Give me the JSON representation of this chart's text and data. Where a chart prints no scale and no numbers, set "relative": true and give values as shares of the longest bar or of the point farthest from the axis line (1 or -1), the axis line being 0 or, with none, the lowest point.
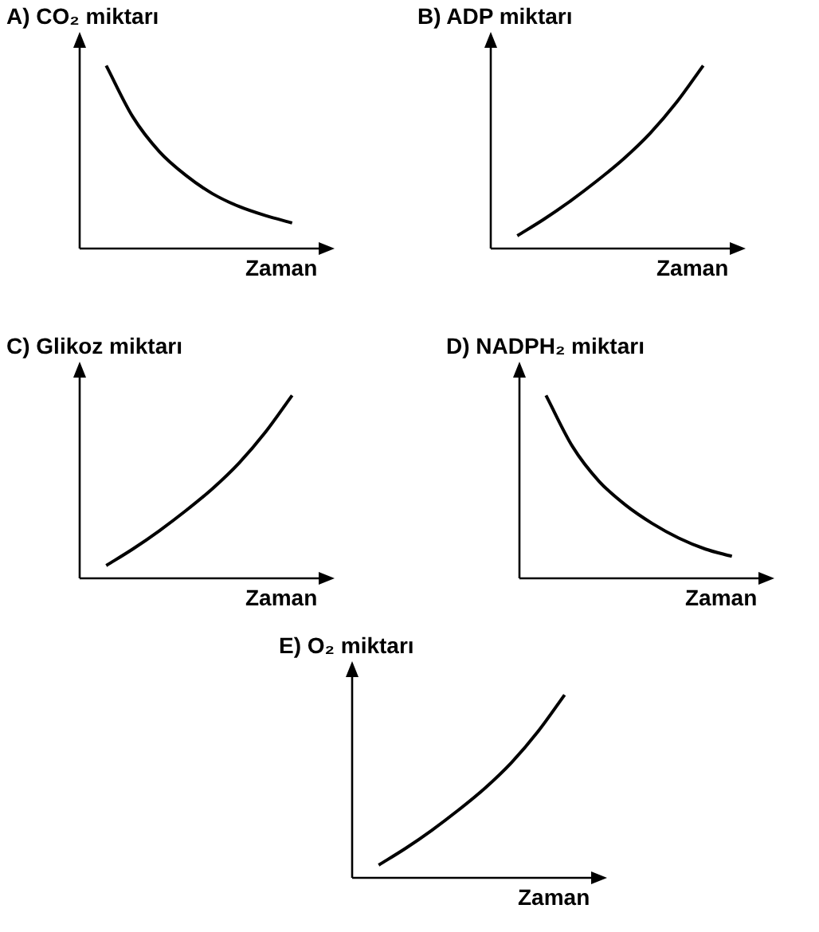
{
  "chart_data": [
    {
      "type": "line",
      "title": "A) CO₂ miktarı",
      "xlabel": "Zaman",
      "relative": true,
      "marker": "none",
      "categories": [
        null,
        null,
        null,
        null,
        null,
        null,
        null,
        null,
        null,
        null
      ],
      "series": [
        {
          "color": "#000000",
          "values": [
            null,
            1,
            0.72,
            0.53,
            0.4,
            0.3,
            0.23,
            0.18,
            0.14,
            null
          ]
        }
      ]
    },
    {
      "type": "line",
      "title": "B) ADP miktarı",
      "xlabel": "Zaman",
      "relative": true,
      "marker": "none",
      "categories": [
        null,
        null,
        null,
        null,
        null,
        null,
        null,
        null,
        null,
        null
      ],
      "series": [
        {
          "color": "#000000",
          "values": [
            null,
            0.07,
            0.16,
            0.26,
            0.37,
            0.49,
            0.63,
            0.8,
            1,
            null
          ]
        }
      ]
    },
    {
      "type": "line",
      "title": "C) Glikoz miktarı",
      "xlabel": "Zaman",
      "relative": true,
      "marker": "none",
      "categories": [
        null,
        null,
        null,
        null,
        null,
        null,
        null,
        null,
        null,
        null
      ],
      "series": [
        {
          "color": "#000000",
          "values": [
            null,
            0.07,
            0.16,
            0.26,
            0.37,
            0.49,
            0.63,
            0.8,
            1,
            null
          ]
        }
      ]
    },
    {
      "type": "line",
      "title": "D) NADPH₂ miktarı",
      "xlabel": "Zaman",
      "relative": true,
      "marker": "none",
      "categories": [
        null,
        null,
        null,
        null,
        null,
        null,
        null,
        null,
        null,
        null
      ],
      "series": [
        {
          "color": "#000000",
          "values": [
            null,
            1,
            0.72,
            0.53,
            0.4,
            0.3,
            0.22,
            0.16,
            0.12,
            null
          ]
        }
      ]
    },
    {
      "type": "line",
      "title": "E) O₂ miktarı",
      "xlabel": "Zaman",
      "relative": true,
      "marker": "none",
      "categories": [
        null,
        null,
        null,
        null,
        null,
        null,
        null,
        null,
        null,
        null
      ],
      "series": [
        {
          "color": "#000000",
          "values": [
            null,
            0.07,
            0.16,
            0.26,
            0.37,
            0.49,
            0.63,
            0.8,
            1,
            null
          ]
        }
      ]
    }
  ]
}
